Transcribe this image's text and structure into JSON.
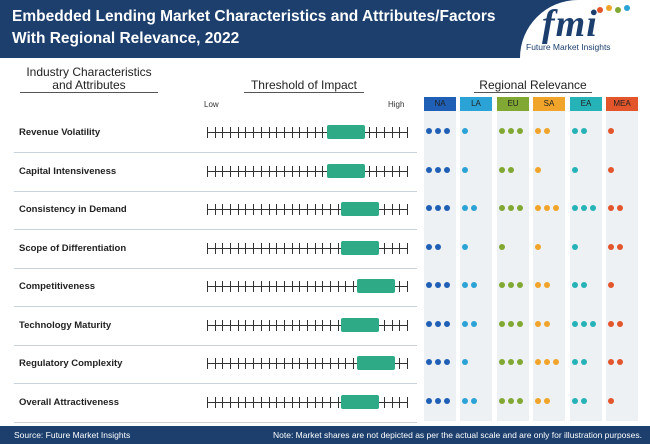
{
  "header": {
    "title": "Embedded Lending Market Characteristics and Attributes/Factors With Regional Relevance, 2022"
  },
  "logo": {
    "letters": "fmi",
    "tagline": "Future Market Insights"
  },
  "columns": {
    "industry": "Industry Characteristics and Attributes",
    "threshold": "Threshold of Impact",
    "regional": "Regional Relevance",
    "low": "Low",
    "high": "High"
  },
  "regions": [
    {
      "code": "NA",
      "color": "#1f5fb5"
    },
    {
      "code": "LA",
      "color": "#2ba3d6"
    },
    {
      "code": "EU",
      "color": "#80a832"
    },
    {
      "code": "SA",
      "color": "#f0a42a"
    },
    {
      "code": "EA",
      "color": "#26b3b8"
    },
    {
      "code": "MEA",
      "color": "#e3552b"
    }
  ],
  "rows": [
    {
      "label": "Revenue Volatility",
      "impact_start": 0.6,
      "impact_end": 0.79,
      "relevance": [
        3,
        1,
        3,
        2,
        2,
        1
      ]
    },
    {
      "label": "Capital Intensiveness",
      "impact_start": 0.6,
      "impact_end": 0.79,
      "relevance": [
        3,
        1,
        2,
        1,
        1,
        1
      ]
    },
    {
      "label": "Consistency in Demand",
      "impact_start": 0.67,
      "impact_end": 0.86,
      "relevance": [
        3,
        2,
        3,
        3,
        3,
        2
      ]
    },
    {
      "label": "Scope of Differentiation",
      "impact_start": 0.67,
      "impact_end": 0.86,
      "relevance": [
        2,
        1,
        1,
        1,
        1,
        2
      ]
    },
    {
      "label": "Competitiveness",
      "impact_start": 0.75,
      "impact_end": 0.94,
      "relevance": [
        3,
        2,
        3,
        2,
        2,
        1
      ]
    },
    {
      "label": "Technology Maturity",
      "impact_start": 0.67,
      "impact_end": 0.86,
      "relevance": [
        3,
        2,
        3,
        2,
        3,
        2
      ]
    },
    {
      "label": "Regulatory Complexity",
      "impact_start": 0.75,
      "impact_end": 0.94,
      "relevance": [
        3,
        1,
        3,
        3,
        2,
        2
      ]
    },
    {
      "label": "Overall Attractiveness",
      "impact_start": 0.67,
      "impact_end": 0.86,
      "relevance": [
        3,
        2,
        3,
        2,
        2,
        1
      ]
    }
  ],
  "footer": {
    "source": "Source: Future Market Insights",
    "note": "Note: Market shares are not depicted as per the actual scale and are only for illustration purposes."
  }
}
